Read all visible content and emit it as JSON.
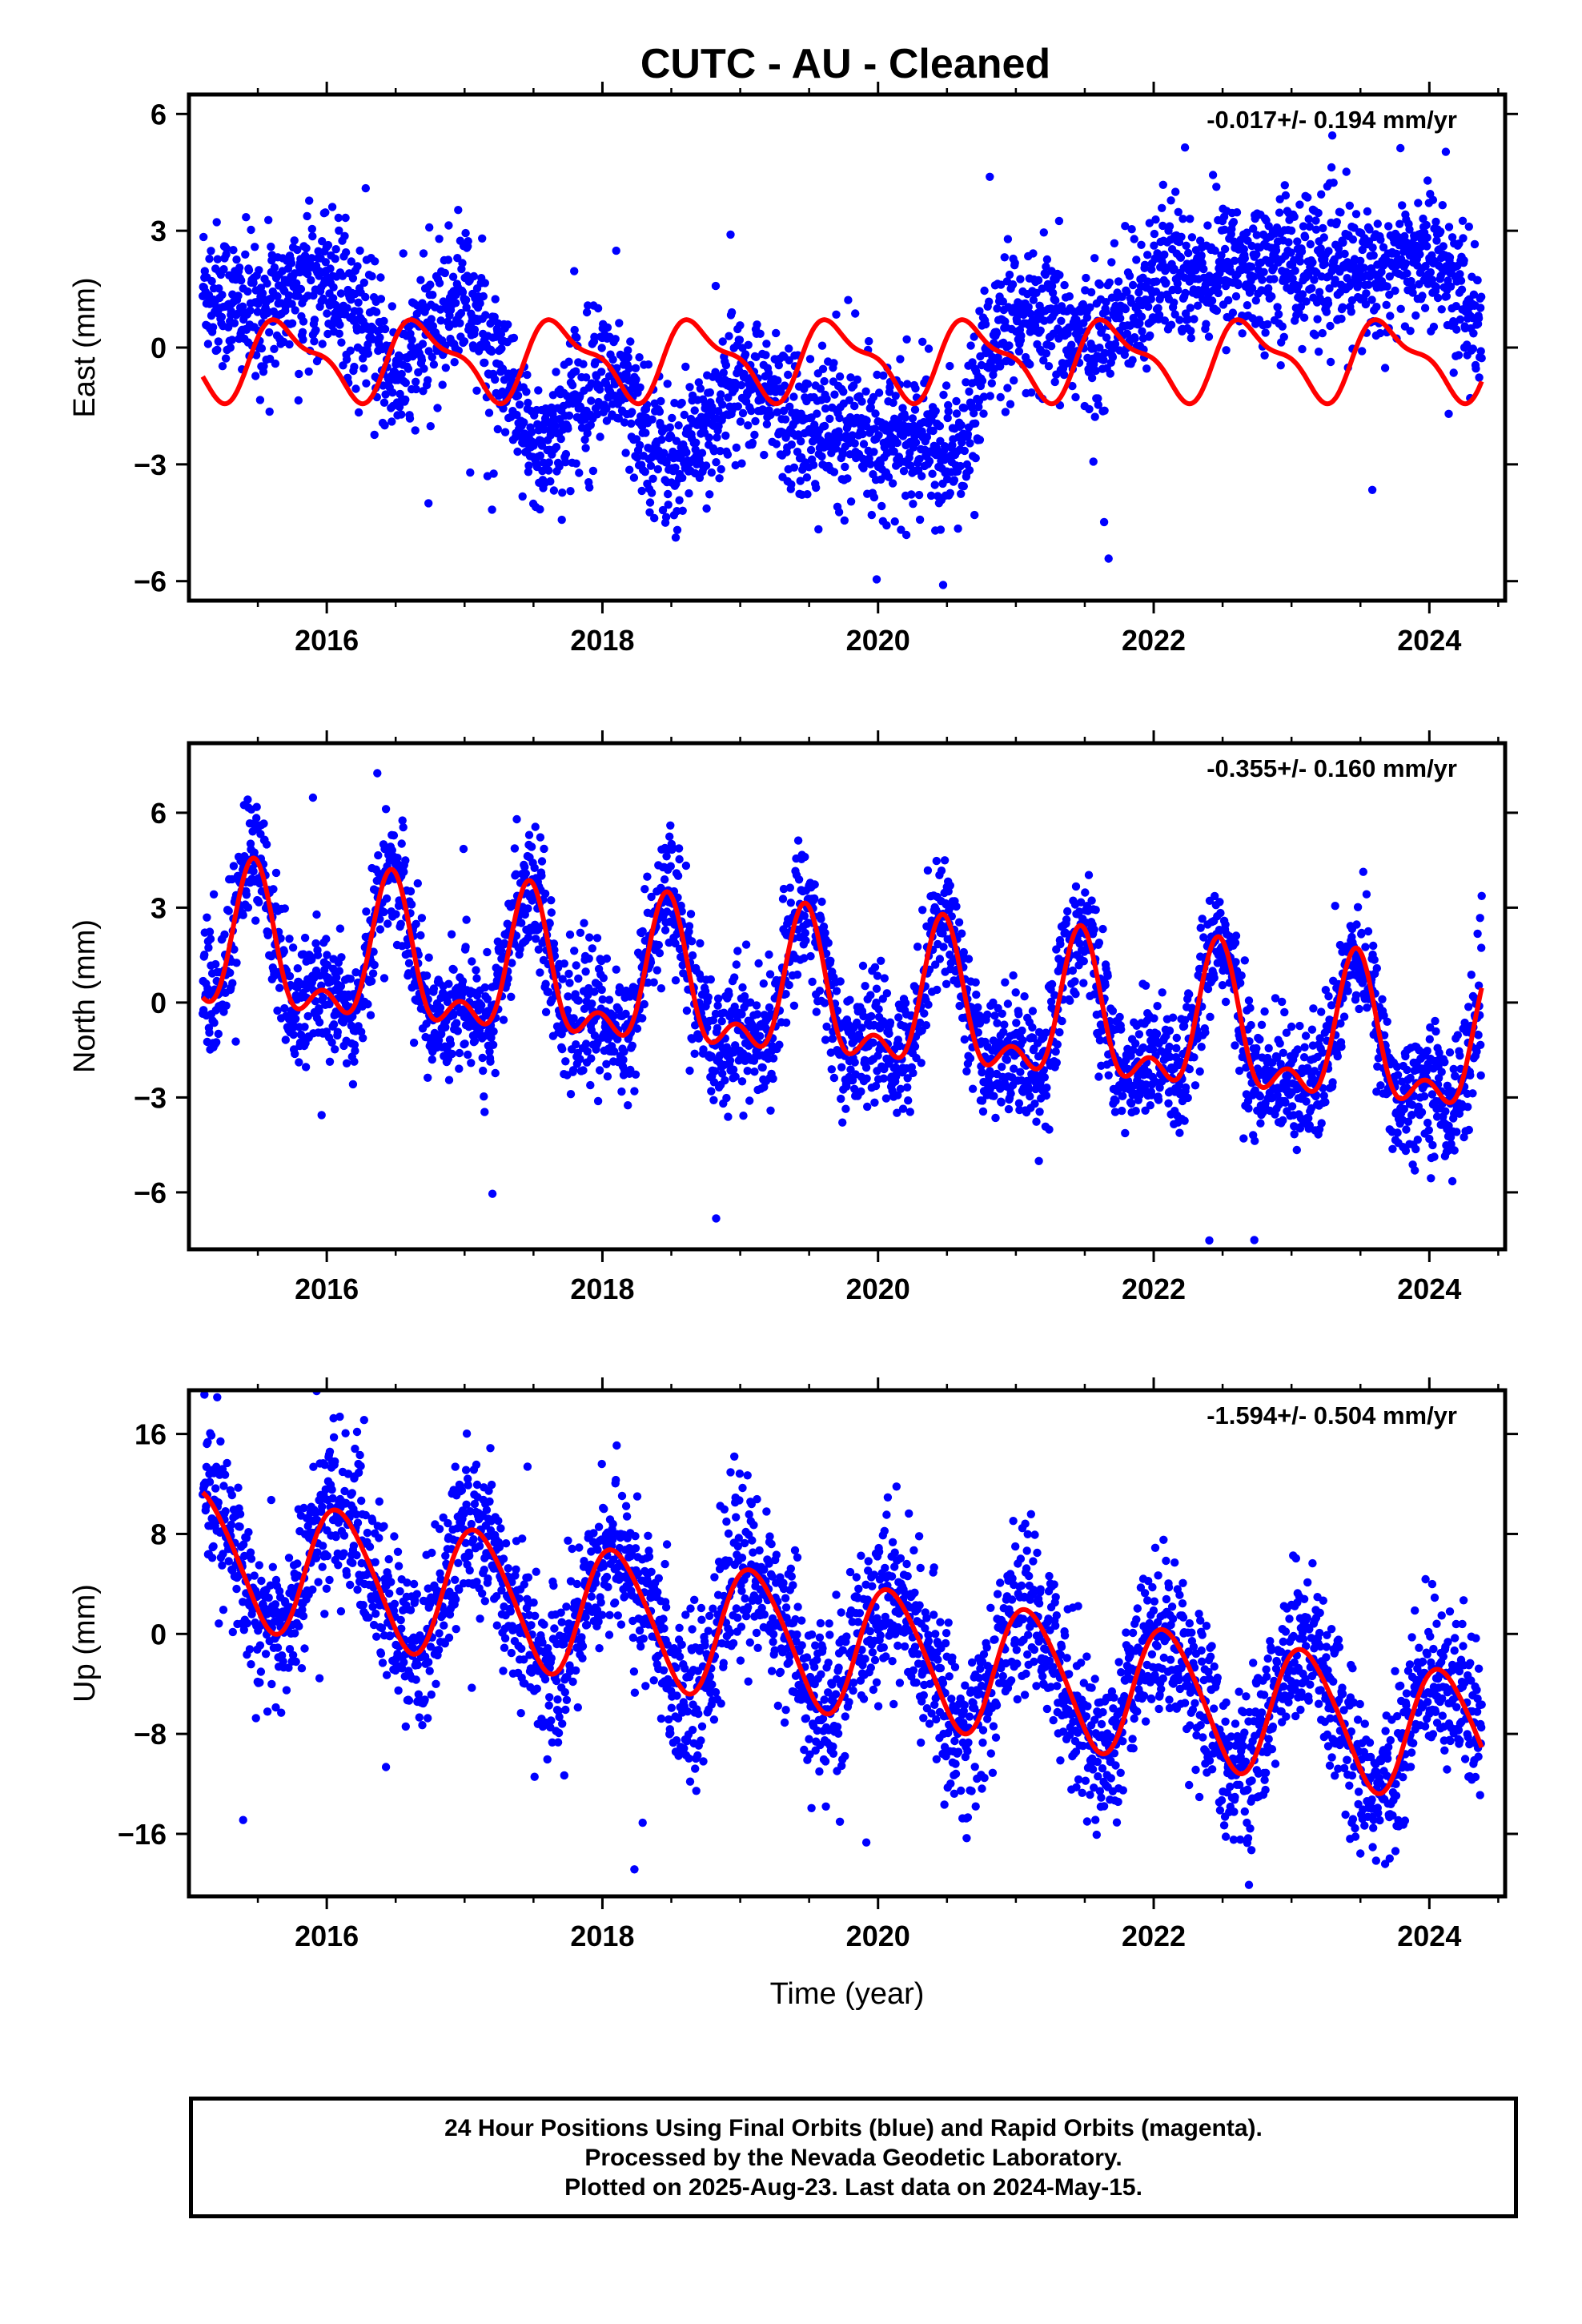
{
  "title": "CUTC  - AU - Cleaned",
  "colors": {
    "points": "#0000ff",
    "model": "#ff0000",
    "axes": "#000000"
  },
  "chart_data": [
    {
      "type": "scatter",
      "id": "east",
      "ylabel": "East (mm)",
      "xlabel": "",
      "rate_text": "-0.017+/- 0.194 mm/yr",
      "xlim": [
        2015.0,
        2024.55
      ],
      "ylim": [
        -6.5,
        6.5
      ],
      "xticks": [
        2016,
        2018,
        2020,
        2022,
        2024
      ],
      "yticks": [
        -6,
        -3,
        0,
        3,
        6
      ],
      "series": [
        {
          "kind": "points",
          "description_only": false,
          "segments": [
            [
              2015.1,
              1.6
            ],
            [
              2015.5,
              0.8
            ],
            [
              2016.0,
              2.0
            ],
            [
              2016.5,
              -0.8
            ],
            [
              2017.0,
              1.5
            ],
            [
              2017.5,
              -2.8
            ],
            [
              2018.0,
              -0.5
            ],
            [
              2018.5,
              -3.0
            ],
            [
              2019.0,
              -0.8
            ],
            [
              2019.5,
              -2.0
            ],
            [
              2020.0,
              -2.2
            ],
            [
              2020.6,
              -2.8
            ],
            [
              2020.8,
              0.2
            ],
            [
              2021.2,
              0.6
            ],
            [
              2021.6,
              0.0
            ],
            [
              2022.0,
              1.8
            ],
            [
              2022.5,
              2.0
            ],
            [
              2023.0,
              2.3
            ],
            [
              2023.5,
              1.8
            ],
            [
              2024.0,
              2.4
            ],
            [
              2024.38,
              0.5
            ]
          ],
          "scatter_sd": 0.9,
          "n": 3100
        },
        {
          "kind": "model",
          "offset": -0.3,
          "amp_annual": 0.9,
          "amp_semi": 0.35,
          "phase_annual": 2015.7,
          "phase_semi": 2015.55
        }
      ]
    },
    {
      "type": "scatter",
      "id": "north",
      "ylabel": "North (mm)",
      "xlabel": "",
      "rate_text": "-0.355+/- 0.160 mm/yr",
      "xlim": [
        2015.0,
        2024.55
      ],
      "ylim": [
        -7.8,
        8.2
      ],
      "xticks": [
        2016,
        2018,
        2020,
        2022,
        2024
      ],
      "yticks": [
        -6,
        -3,
        0,
        3,
        6
      ],
      "series": [
        {
          "kind": "points",
          "description_only": false,
          "segments": [
            [
              2015.1,
              0.5
            ],
            [
              2024.38,
              -1.5
            ]
          ],
          "scatter_sd": 1.0,
          "n": 3100
        },
        {
          "kind": "model",
          "offset": 1.6,
          "trend": -0.355,
          "amp_annual": 2.0,
          "amp_semi": 1.1,
          "phase_annual": 2015.47,
          "phase_semi": 2015.47
        }
      ]
    },
    {
      "type": "scatter",
      "id": "up",
      "ylabel": "Up (mm)",
      "xlabel": "Time (year)",
      "rate_text": "-1.594+/- 0.504 mm/yr",
      "xlim": [
        2015.0,
        2024.55
      ],
      "ylim": [
        -21,
        19.5
      ],
      "xticks": [
        2016,
        2018,
        2020,
        2022,
        2024
      ],
      "yticks": [
        -16,
        -8,
        0,
        8,
        16
      ],
      "series": [
        {
          "kind": "points",
          "description_only": false,
          "segments": [
            [
              2015.1,
              11.0
            ],
            [
              2024.38,
              -4.5
            ]
          ],
          "scatter_sd": 3.2,
          "n": 3100
        },
        {
          "kind": "model",
          "offset": 6.3,
          "trend": -1.594,
          "amp_annual": 5.2,
          "amp_semi": 0.6,
          "phase_annual": 2016.1,
          "phase_semi": 2015.95
        }
      ]
    }
  ],
  "footer": {
    "line1": "24 Hour Positions Using Final Orbits (blue) and Rapid Orbits (magenta).",
    "line2": "Processed by the Nevada Geodetic Laboratory.",
    "line3": "Plotted on 2025-Aug-23. Last data on 2024-May-15."
  }
}
